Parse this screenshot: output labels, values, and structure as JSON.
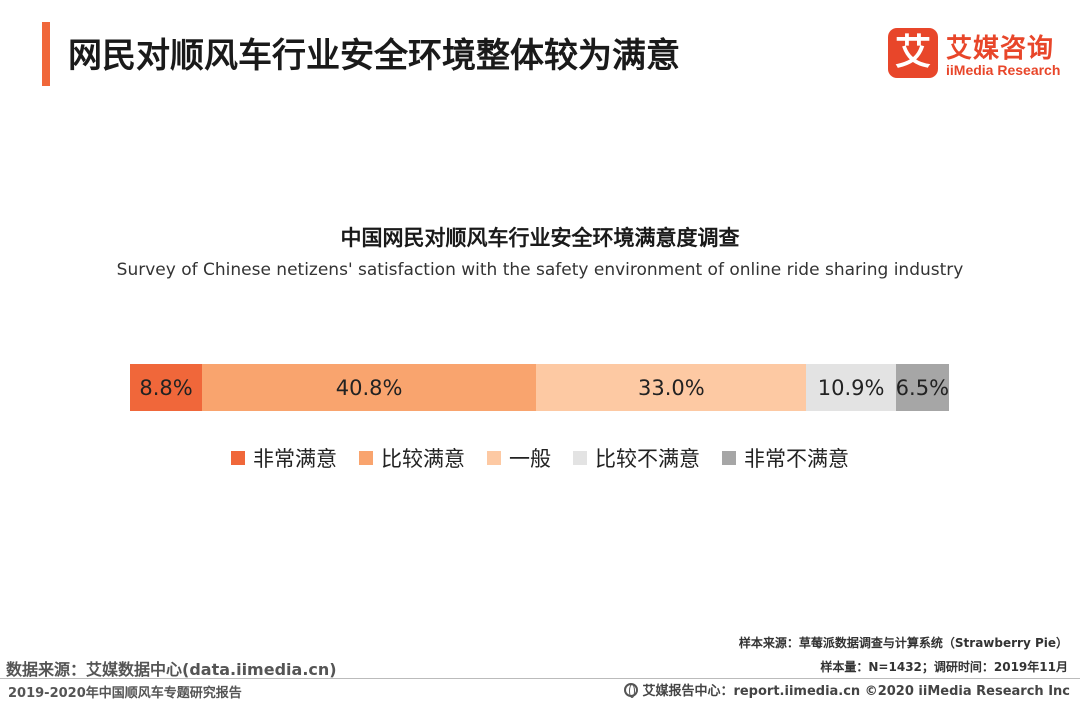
{
  "header": {
    "title": "网民对顺风车行业安全环境整体较为满意",
    "logo": {
      "mark": "艾",
      "name_cn": "艾媒咨询",
      "name_en": "iiMedia Research"
    }
  },
  "chart_data": {
    "type": "bar",
    "orientation": "horizontal",
    "stacked": "100%",
    "title": "中国网民对顺风车行业安全环境满意度调查",
    "subtitle": "Survey of Chinese netizens' satisfaction with the safety environment of online ride sharing industry",
    "unit": "%",
    "legend_position": "bottom",
    "grid": false,
    "series": [
      {
        "name": "非常满意",
        "value": 8.8,
        "label": "8.8%",
        "color": "#f0673a"
      },
      {
        "name": "比较满意",
        "value": 40.8,
        "label": "40.8%",
        "color": "#f9a46e"
      },
      {
        "name": "一般",
        "value": 33.0,
        "label": "33.0%",
        "color": "#fdc9a3"
      },
      {
        "name": "比较不满意",
        "value": 10.9,
        "label": "10.9%",
        "color": "#e3e3e3"
      },
      {
        "name": "非常不满意",
        "value": 6.5,
        "label": "6.5%",
        "color": "#a6a6a6"
      }
    ]
  },
  "notes": {
    "sample_source": "样本来源：草莓派数据调查与计算系统（Strawberry Pie）",
    "sample_size": "样本量：N=1432；调研时间：2019年11月",
    "data_source": "数据来源：艾媒数据中心(data.iimedia.cn)"
  },
  "footer": {
    "report_name": "2019-2020年中国顺风车专题研究报告",
    "right": "艾媒报告中心：report.iimedia.cn  ©2020  iiMedia Research  Inc",
    "icon": "globe-icon"
  }
}
